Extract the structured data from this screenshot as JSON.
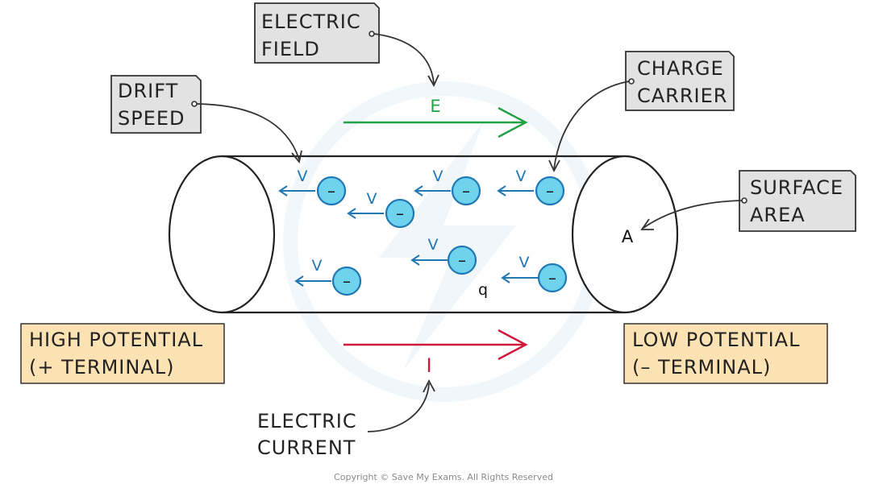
{
  "labels": {
    "electric_field_line1": "ELECTRIC",
    "electric_field_line2": "FIELD",
    "drift_speed_line1": "DRIFT",
    "drift_speed_line2": "SPEED",
    "charge_carrier_line1": "CHARGE",
    "charge_carrier_line2": "CARRIER",
    "surface_area_line1": "SURFACE",
    "surface_area_line2": "AREA",
    "high_potential_line1": "HIGH  POTENTIAL",
    "high_potential_line2": "(+ TERMINAL)",
    "low_potential_line1": "LOW  POTENTIAL",
    "low_potential_line2": "(– TERMINAL)",
    "electric_current_line1": "ELECTRIC",
    "electric_current_line2": "CURRENT"
  },
  "symbols": {
    "field": "E",
    "current": "I",
    "area": "A",
    "charge": "q",
    "velocity": "V",
    "electron": "–"
  },
  "copyright": "Copyright © Save My Exams. All Rights Reserved",
  "colors": {
    "field": "#22a046",
    "current": "#d0193a",
    "electron_fill": "#6fd3ee",
    "electron_stroke": "#1f78b4",
    "drift_arrow": "#1f78b4",
    "label_box": "#e2e2e2",
    "potential_box": "#fde3b4"
  }
}
